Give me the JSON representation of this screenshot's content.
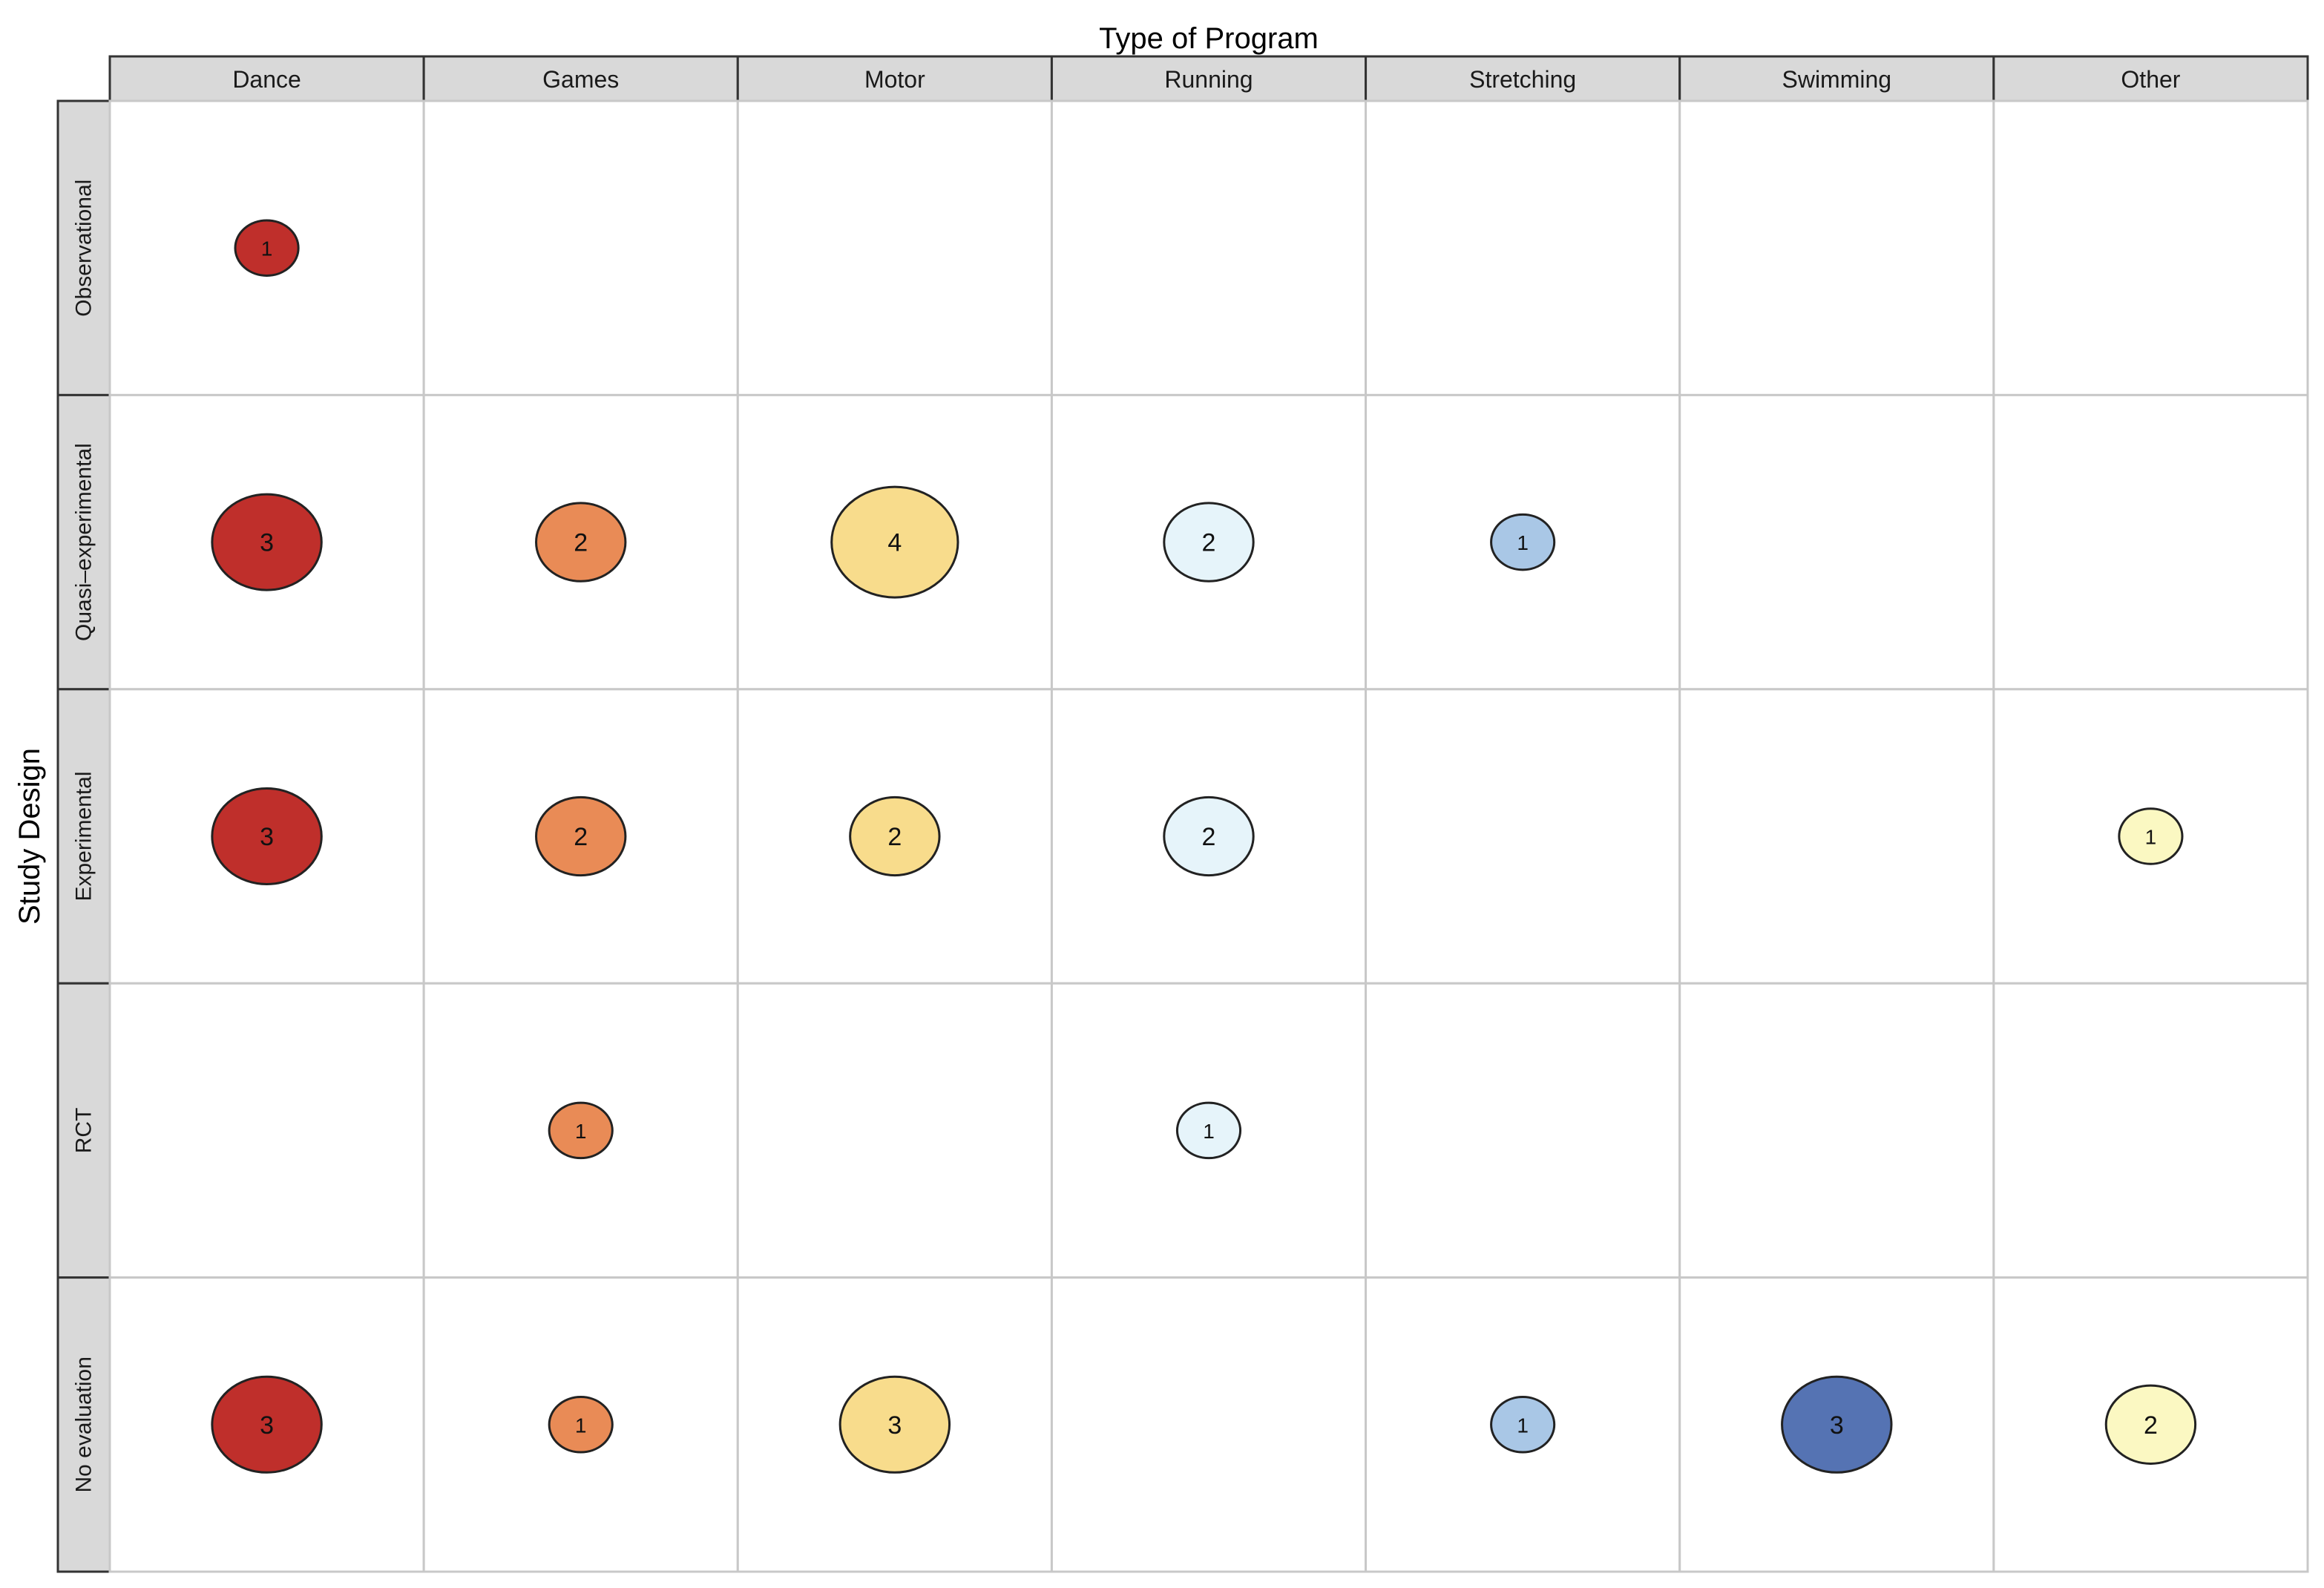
{
  "chart_data": {
    "type": "bubble-matrix",
    "x_title": "Type of Program",
    "y_title": "Study Design",
    "columns": [
      "Dance",
      "Games",
      "Motor",
      "Running",
      "Stretching",
      "Swimming",
      "Other"
    ],
    "rows": [
      "Observational",
      "Quasi–experimental",
      "Experimental",
      "RCT",
      "No evaluation"
    ],
    "column_colors": {
      "Dance": "#bf2f2b",
      "Games": "#e98b56",
      "Motor": "#f8dc8c",
      "Running": "#e6f4fa",
      "Stretching": "#a9c7e6",
      "Swimming": "#5573b3",
      "Other": "#fbf8c2"
    },
    "points": [
      {
        "row": "Observational",
        "column": "Dance",
        "count": 1
      },
      {
        "row": "Quasi–experimental",
        "column": "Dance",
        "count": 3
      },
      {
        "row": "Quasi–experimental",
        "column": "Games",
        "count": 2
      },
      {
        "row": "Quasi–experimental",
        "column": "Motor",
        "count": 4
      },
      {
        "row": "Quasi–experimental",
        "column": "Running",
        "count": 2
      },
      {
        "row": "Quasi–experimental",
        "column": "Stretching",
        "count": 1
      },
      {
        "row": "Experimental",
        "column": "Dance",
        "count": 3
      },
      {
        "row": "Experimental",
        "column": "Games",
        "count": 2
      },
      {
        "row": "Experimental",
        "column": "Motor",
        "count": 2
      },
      {
        "row": "Experimental",
        "column": "Running",
        "count": 2
      },
      {
        "row": "Experimental",
        "column": "Other",
        "count": 1
      },
      {
        "row": "RCT",
        "column": "Games",
        "count": 1
      },
      {
        "row": "RCT",
        "column": "Running",
        "count": 1
      },
      {
        "row": "No evaluation",
        "column": "Dance",
        "count": 3
      },
      {
        "row": "No evaluation",
        "column": "Games",
        "count": 1
      },
      {
        "row": "No evaluation",
        "column": "Motor",
        "count": 3
      },
      {
        "row": "No evaluation",
        "column": "Stretching",
        "count": 1
      },
      {
        "row": "No evaluation",
        "column": "Swimming",
        "count": 3
      },
      {
        "row": "No evaluation",
        "column": "Other",
        "count": 2
      }
    ]
  }
}
